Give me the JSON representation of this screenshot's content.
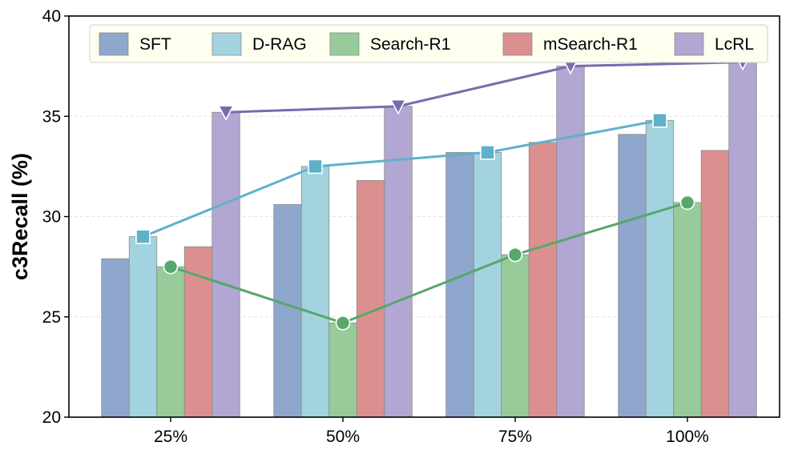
{
  "chart_data": {
    "type": "bar",
    "title": "",
    "xlabel": "",
    "ylabel": "c3Recall (%)",
    "ylim": [
      20,
      40
    ],
    "yticks": [
      20,
      25,
      30,
      35,
      40
    ],
    "categories": [
      "25%",
      "50%",
      "75%",
      "100%"
    ],
    "grid": true,
    "legend_position": "top",
    "series": [
      {
        "name": "SFT",
        "color": "#8fa7cc",
        "values": [
          27.9,
          30.6,
          33.2,
          34.1
        ]
      },
      {
        "name": "D-RAG",
        "color": "#a3d3df",
        "values": [
          29.0,
          32.5,
          33.2,
          34.8
        ]
      },
      {
        "name": "Search-R1",
        "color": "#97cb9a",
        "values": [
          27.5,
          24.7,
          28.1,
          30.7
        ]
      },
      {
        "name": "mSearch-R1",
        "color": "#dc8f8f",
        "values": [
          28.5,
          31.8,
          33.7,
          33.3
        ]
      },
      {
        "name": "LcRL",
        "color": "#b2a6d2",
        "values": [
          35.2,
          35.5,
          37.5,
          37.7
        ]
      }
    ],
    "lines": [
      {
        "series": "D-RAG",
        "color": "#5fb1ca",
        "marker": "square",
        "values": [
          29.0,
          32.5,
          33.2,
          34.8
        ]
      },
      {
        "series": "Search-R1",
        "color": "#56a76c",
        "marker": "circle",
        "values": [
          27.5,
          24.7,
          28.1,
          30.7
        ]
      },
      {
        "series": "LcRL",
        "color": "#7a6aae",
        "marker": "triangle-down",
        "values": [
          35.2,
          35.5,
          37.5,
          37.7
        ]
      }
    ]
  }
}
